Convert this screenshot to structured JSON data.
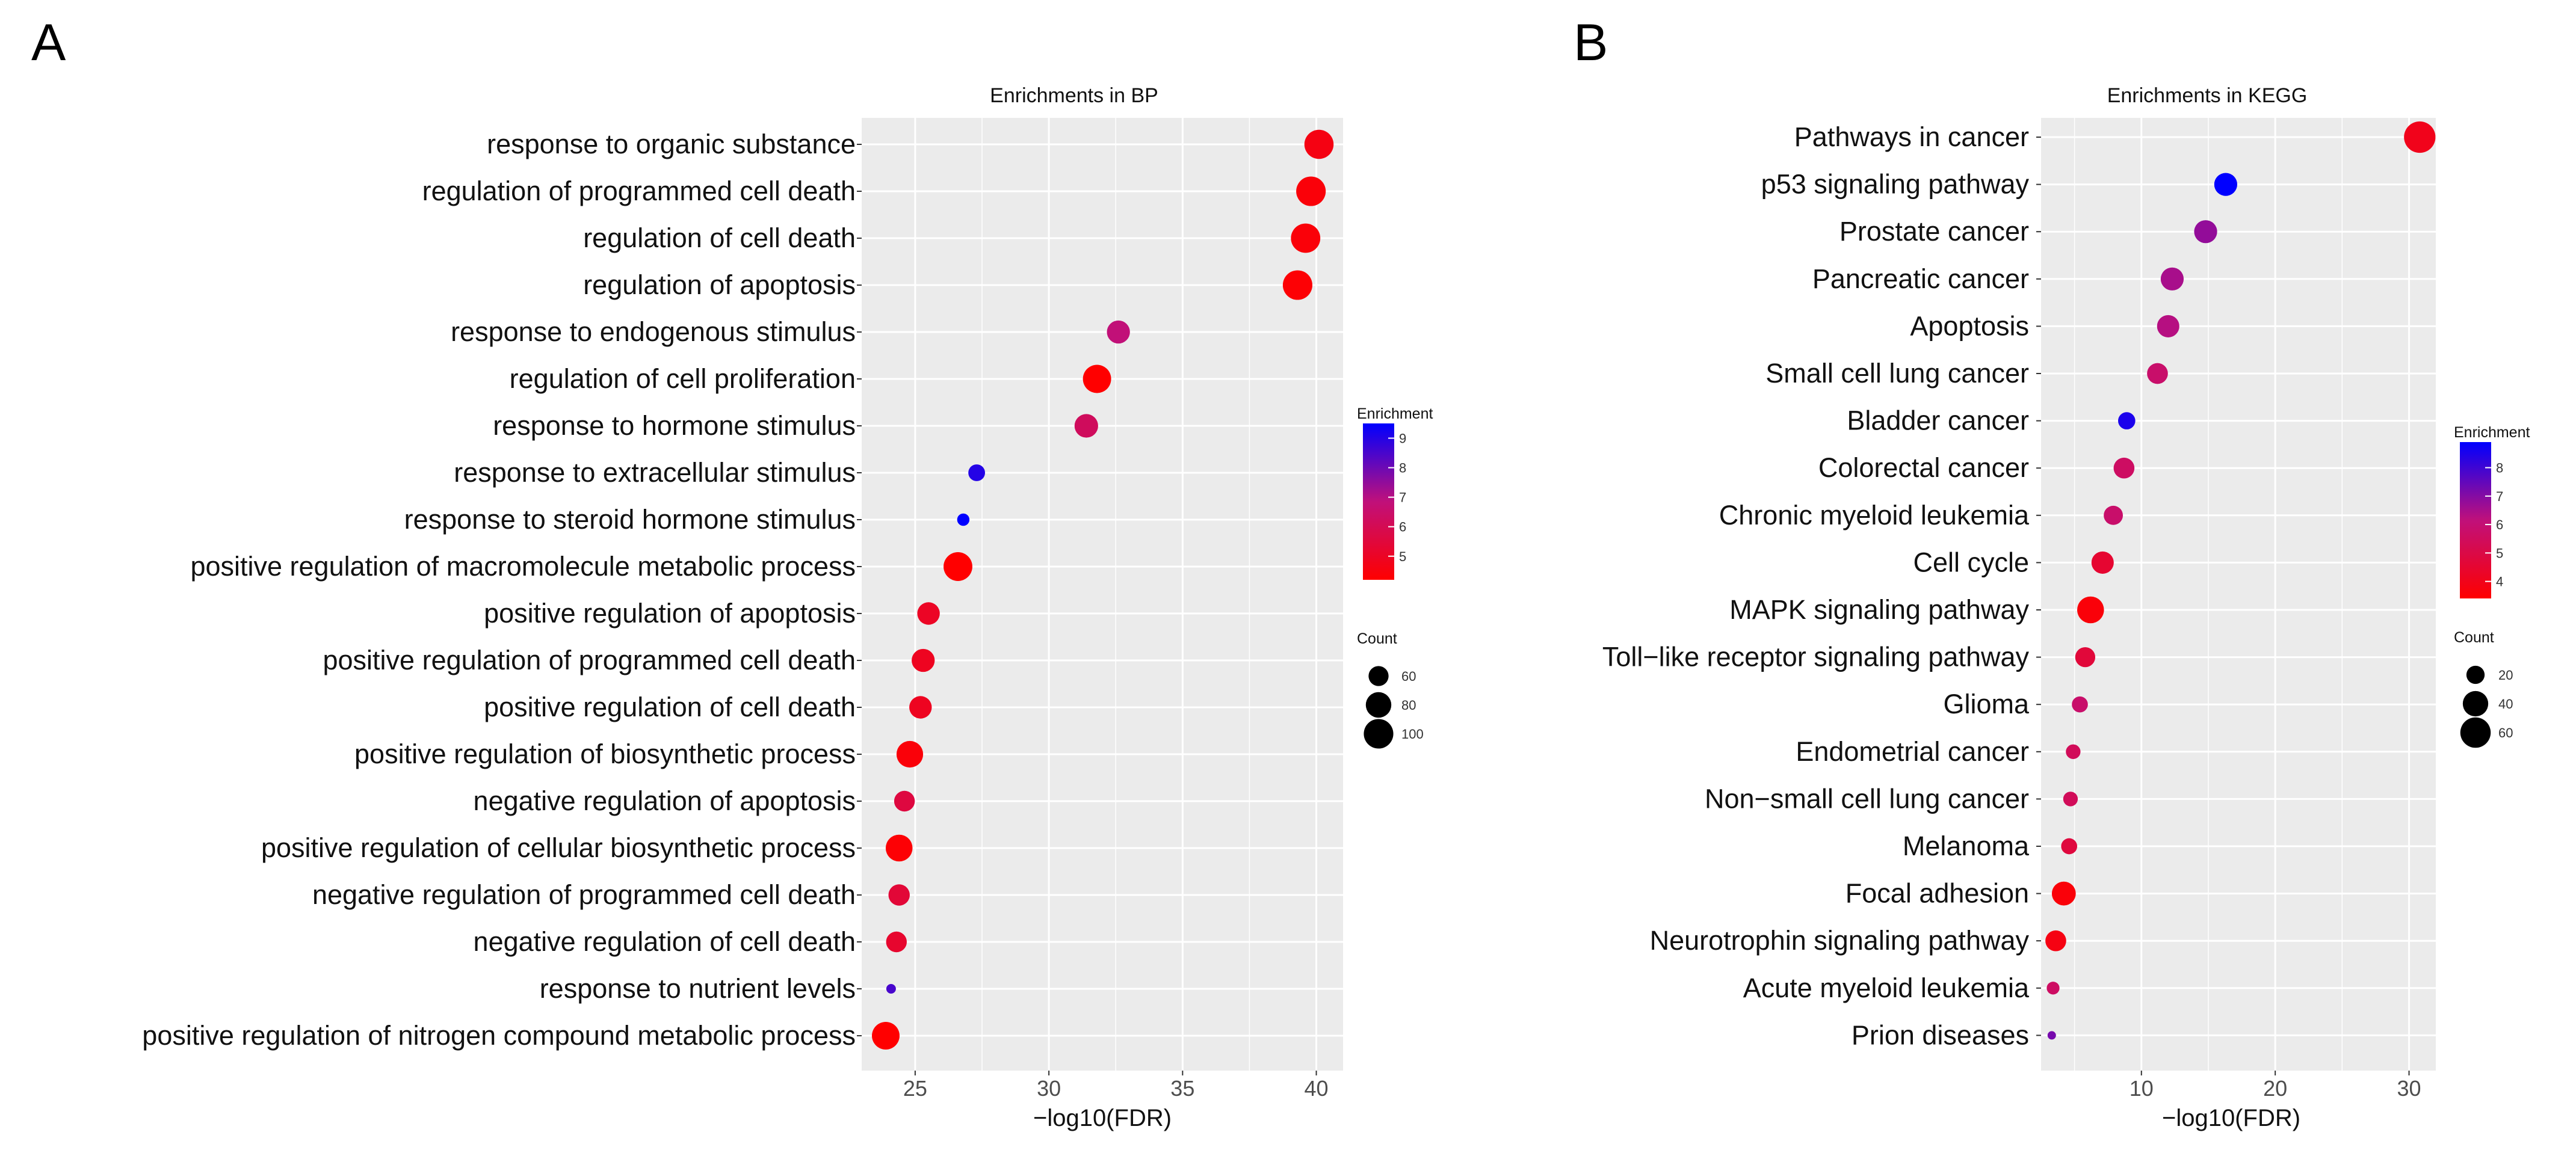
{
  "chart_data": [
    {
      "panel": "A",
      "type": "scatter",
      "title": "Enrichments in BP",
      "xlabel": "−log10(FDR)",
      "ylabel": "",
      "xlim": [
        23,
        41
      ],
      "xticks": [
        25,
        30,
        35,
        40
      ],
      "grid": true,
      "color_legend": {
        "title": "Enrichment",
        "ticks": [
          5,
          6,
          7,
          8,
          9
        ],
        "min": 4.2,
        "max": 9.5,
        "low_color": "#ff0000",
        "high_color": "#0000ff"
      },
      "size_legend": {
        "title": "Count",
        "values": [
          60,
          80,
          100
        ],
        "min": 45,
        "max": 110
      },
      "categories": [
        "response to organic substance",
        "regulation of programmed cell death",
        "regulation of cell death",
        "regulation of apoptosis",
        "response to endogenous stimulus",
        "regulation of cell proliferation",
        "response to hormone stimulus",
        "response to extracellular stimulus",
        "response to steroid hormone stimulus",
        "positive regulation of macromolecule metabolic process",
        "positive regulation of apoptosis",
        "positive regulation of programmed cell death",
        "positive regulation of cell death",
        "positive regulation of biosynthetic process",
        "negative regulation of apoptosis",
        "positive regulation of cellular biosynthetic process",
        "negative regulation of programmed cell death",
        "negative regulation of cell death",
        "response to nutrient levels",
        "positive regulation of nitrogen compound metabolic process"
      ],
      "x": [
        40.1,
        39.8,
        39.6,
        39.3,
        32.6,
        31.8,
        31.4,
        27.3,
        26.8,
        26.6,
        25.5,
        25.3,
        25.2,
        24.8,
        24.6,
        24.4,
        24.4,
        24.3,
        24.1,
        23.9
      ],
      "enrichment": [
        4.6,
        4.4,
        4.4,
        4.3,
        6.8,
        4.2,
        6.2,
        9.0,
        9.5,
        4.2,
        5.0,
        4.9,
        4.9,
        4.4,
        5.6,
        4.3,
        5.4,
        5.2,
        8.5,
        4.2
      ],
      "count": [
        98,
        100,
        99,
        100,
        70,
        93,
        72,
        52,
        46,
        96,
        68,
        70,
        68,
        85,
        62,
        86,
        64,
        62,
        45,
        90
      ]
    },
    {
      "panel": "B",
      "type": "scatter",
      "title": "Enrichments in KEGG",
      "xlabel": "−log10(FDR)",
      "ylabel": "",
      "xlim": [
        2.5,
        32
      ],
      "xticks": [
        10,
        20,
        30
      ],
      "grid": true,
      "color_legend": {
        "title": "Enrichment",
        "ticks": [
          4,
          5,
          6,
          7,
          8
        ],
        "min": 3.4,
        "max": 8.9,
        "low_color": "#ff0000",
        "high_color": "#0000ff"
      },
      "size_legend": {
        "title": "Count",
        "values": [
          20,
          40,
          60
        ],
        "min": 10,
        "max": 70
      },
      "categories": [
        "Pathways in cancer",
        "p53 signaling pathway",
        "Prostate cancer",
        "Pancreatic cancer",
        "Apoptosis",
        "Small cell lung cancer",
        "Bladder cancer",
        "Colorectal cancer",
        "Chronic myeloid leukemia",
        "Cell cycle",
        "MAPK signaling pathway",
        "Toll−like receptor signaling pathway",
        "Glioma",
        "Endometrial cancer",
        "Non−small cell lung cancer",
        "Melanoma",
        "Focal adhesion",
        "Neurotrophin signaling pathway",
        "Acute myeloid leukemia",
        "Prion diseases"
      ],
      "x": [
        30.8,
        16.3,
        14.8,
        12.3,
        12.0,
        11.2,
        8.9,
        8.7,
        7.9,
        7.1,
        6.2,
        5.8,
        5.4,
        4.9,
        4.7,
        4.6,
        4.2,
        3.6,
        3.4,
        3.3
      ],
      "enrichment": [
        4.0,
        8.9,
        6.8,
        6.5,
        6.3,
        5.8,
        8.5,
        5.6,
        5.8,
        4.5,
        3.6,
        4.7,
        5.8,
        5.4,
        5.4,
        4.8,
        3.6,
        3.8,
        5.6,
        7.2
      ],
      "count": [
        65,
        32,
        32,
        32,
        30,
        26,
        18,
        26,
        22,
        30,
        45,
        24,
        16,
        14,
        14,
        16,
        35,
        26,
        12,
        8
      ]
    }
  ],
  "panels": {
    "a_letter": "A",
    "b_letter": "B"
  }
}
